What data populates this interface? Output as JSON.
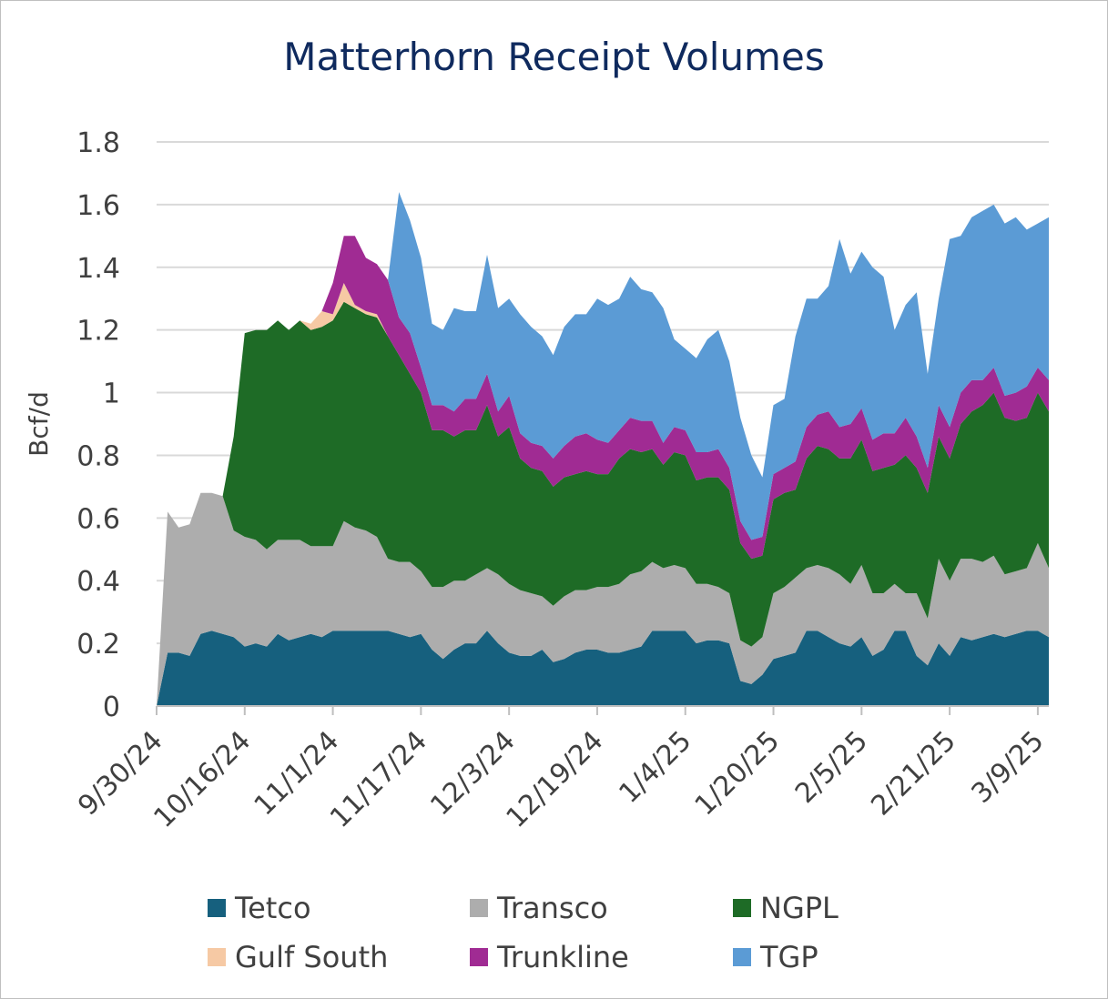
{
  "chart_data": {
    "type": "area",
    "stacked": true,
    "title": "Matterhorn Receipt Volumes",
    "ylabel": "Bcf/d",
    "xlabel": "",
    "ylim": [
      0,
      1.8
    ],
    "yticks": [
      0,
      0.2,
      0.4,
      0.6,
      0.8,
      1,
      1.2,
      1.4,
      1.6,
      1.8
    ],
    "ytick_labels": [
      "0",
      "0.2",
      "0.4",
      "0.6",
      "0.8",
      "1",
      "1.2",
      "1.4",
      "1.6",
      "1.8"
    ],
    "xtick_labels": [
      "9/30/24",
      "10/16/24",
      "11/1/24",
      "11/17/24",
      "12/3/24",
      "12/19/24",
      "1/4/25",
      "1/20/25",
      "2/5/25",
      "2/21/25",
      "3/9/25"
    ],
    "grid": true,
    "legend_position": "bottom",
    "x": [
      "9/30/24",
      "10/2/24",
      "10/4/24",
      "10/6/24",
      "10/8/24",
      "10/10/24",
      "10/12/24",
      "10/14/24",
      "10/16/24",
      "10/18/24",
      "10/20/24",
      "10/22/24",
      "10/24/24",
      "10/26/24",
      "10/28/24",
      "10/30/24",
      "11/1/24",
      "11/3/24",
      "11/5/24",
      "11/7/24",
      "11/9/24",
      "11/11/24",
      "11/13/24",
      "11/15/24",
      "11/17/24",
      "11/19/24",
      "11/21/24",
      "11/23/24",
      "11/25/24",
      "11/27/24",
      "11/29/24",
      "12/1/24",
      "12/3/24",
      "12/5/24",
      "12/7/24",
      "12/9/24",
      "12/11/24",
      "12/13/24",
      "12/15/24",
      "12/17/24",
      "12/19/24",
      "12/21/24",
      "12/23/24",
      "12/25/24",
      "12/27/24",
      "12/29/24",
      "12/31/24",
      "1/2/25",
      "1/4/25",
      "1/6/25",
      "1/8/25",
      "1/10/25",
      "1/12/25",
      "1/14/25",
      "1/16/25",
      "1/18/25",
      "1/20/25",
      "1/22/25",
      "1/24/25",
      "1/26/25",
      "1/28/25",
      "1/30/25",
      "2/1/25",
      "2/3/25",
      "2/5/25",
      "2/7/25",
      "2/9/25",
      "2/11/25",
      "2/13/25",
      "2/15/25",
      "2/17/25",
      "2/19/25",
      "2/21/25",
      "2/23/25",
      "2/25/25",
      "2/27/25",
      "3/1/25",
      "3/3/25",
      "3/5/25",
      "3/7/25",
      "3/9/25",
      "3/11/25"
    ],
    "series": [
      {
        "name": "Tetco",
        "color": "#16607e",
        "values": [
          0,
          0.17,
          0.17,
          0.16,
          0.23,
          0.24,
          0.23,
          0.22,
          0.19,
          0.2,
          0.19,
          0.23,
          0.21,
          0.22,
          0.23,
          0.22,
          0.24,
          0.24,
          0.24,
          0.24,
          0.24,
          0.24,
          0.23,
          0.22,
          0.23,
          0.18,
          0.15,
          0.18,
          0.2,
          0.2,
          0.24,
          0.2,
          0.17,
          0.16,
          0.16,
          0.18,
          0.14,
          0.15,
          0.17,
          0.18,
          0.18,
          0.17,
          0.17,
          0.18,
          0.19,
          0.24,
          0.24,
          0.24,
          0.24,
          0.2,
          0.21,
          0.21,
          0.2,
          0.08,
          0.07,
          0.1,
          0.15,
          0.16,
          0.17,
          0.24,
          0.24,
          0.22,
          0.2,
          0.19,
          0.22,
          0.16,
          0.18,
          0.24,
          0.24,
          0.16,
          0.13,
          0.2,
          0.16,
          0.22,
          0.21,
          0.22,
          0.23,
          0.22,
          0.23,
          0.24,
          0.24,
          0.22
        ]
      },
      {
        "name": "Transco",
        "color": "#adadad",
        "values": [
          0,
          0.45,
          0.4,
          0.42,
          0.45,
          0.44,
          0.44,
          0.34,
          0.35,
          0.33,
          0.31,
          0.3,
          0.32,
          0.31,
          0.28,
          0.29,
          0.27,
          0.35,
          0.33,
          0.32,
          0.3,
          0.23,
          0.23,
          0.24,
          0.2,
          0.2,
          0.23,
          0.22,
          0.2,
          0.22,
          0.2,
          0.22,
          0.22,
          0.21,
          0.2,
          0.17,
          0.18,
          0.2,
          0.2,
          0.19,
          0.2,
          0.21,
          0.22,
          0.24,
          0.24,
          0.22,
          0.2,
          0.21,
          0.2,
          0.19,
          0.18,
          0.17,
          0.16,
          0.13,
          0.12,
          0.12,
          0.21,
          0.22,
          0.24,
          0.2,
          0.21,
          0.22,
          0.22,
          0.2,
          0.23,
          0.2,
          0.18,
          0.15,
          0.12,
          0.2,
          0.15,
          0.27,
          0.24,
          0.25,
          0.26,
          0.24,
          0.25,
          0.2,
          0.2,
          0.2,
          0.28,
          0.22
        ]
      },
      {
        "name": "NGPL",
        "color": "#1e6b26",
        "values": [
          0,
          0,
          0,
          0,
          0,
          0,
          0,
          0.3,
          0.65,
          0.67,
          0.7,
          0.7,
          0.67,
          0.7,
          0.69,
          0.7,
          0.72,
          0.7,
          0.7,
          0.69,
          0.7,
          0.71,
          0.66,
          0.6,
          0.57,
          0.5,
          0.5,
          0.46,
          0.48,
          0.46,
          0.52,
          0.44,
          0.5,
          0.42,
          0.4,
          0.4,
          0.38,
          0.38,
          0.37,
          0.38,
          0.36,
          0.36,
          0.4,
          0.4,
          0.38,
          0.36,
          0.33,
          0.36,
          0.36,
          0.33,
          0.34,
          0.35,
          0.33,
          0.31,
          0.28,
          0.26,
          0.3,
          0.3,
          0.28,
          0.35,
          0.38,
          0.38,
          0.37,
          0.4,
          0.4,
          0.39,
          0.4,
          0.38,
          0.44,
          0.4,
          0.4,
          0.39,
          0.39,
          0.43,
          0.47,
          0.5,
          0.52,
          0.5,
          0.48,
          0.48,
          0.48,
          0.5
        ]
      },
      {
        "name": "Gulf South",
        "color": "#f6c9a4",
        "values": [
          0,
          0,
          0,
          0,
          0,
          0,
          0,
          0,
          0,
          0,
          0,
          0,
          0,
          0,
          0.02,
          0.05,
          0.02,
          0.06,
          0.01,
          0.01,
          0.01,
          0,
          0,
          0,
          0,
          0,
          0,
          0,
          0,
          0,
          0,
          0,
          0,
          0,
          0,
          0,
          0,
          0,
          0,
          0,
          0,
          0,
          0,
          0,
          0,
          0,
          0,
          0,
          0,
          0,
          0,
          0,
          0,
          0,
          0,
          0,
          0,
          0,
          0,
          0,
          0,
          0,
          0,
          0,
          0,
          0,
          0,
          0,
          0,
          0,
          0,
          0,
          0,
          0,
          0,
          0,
          0,
          0,
          0,
          0,
          0,
          0
        ]
      },
      {
        "name": "Trunkline",
        "color": "#a02b93",
        "values": [
          0,
          0,
          0,
          0,
          0,
          0,
          0,
          0,
          0,
          0,
          0,
          0,
          0,
          0,
          0,
          0,
          0.1,
          0.15,
          0.22,
          0.17,
          0.16,
          0.18,
          0.12,
          0.13,
          0.08,
          0.08,
          0.08,
          0.08,
          0.1,
          0.1,
          0.1,
          0.08,
          0.1,
          0.08,
          0.08,
          0.08,
          0.09,
          0.1,
          0.12,
          0.12,
          0.11,
          0.1,
          0.09,
          0.1,
          0.1,
          0.09,
          0.07,
          0.08,
          0.08,
          0.09,
          0.08,
          0.09,
          0.07,
          0.07,
          0.06,
          0.06,
          0.08,
          0.08,
          0.09,
          0.1,
          0.1,
          0.12,
          0.1,
          0.11,
          0.1,
          0.1,
          0.11,
          0.1,
          0.12,
          0.1,
          0.08,
          0.1,
          0.1,
          0.1,
          0.1,
          0.08,
          0.08,
          0.07,
          0.09,
          0.1,
          0.08,
          0.1
        ]
      },
      {
        "name": "TGP",
        "color": "#5b9bd5",
        "values": [
          0,
          0,
          0,
          0,
          0,
          0,
          0,
          0,
          0,
          0,
          0,
          0,
          0,
          0,
          0,
          0,
          0,
          0,
          0,
          0,
          0,
          0,
          0.4,
          0.36,
          0.35,
          0.26,
          0.24,
          0.33,
          0.28,
          0.28,
          0.38,
          0.33,
          0.31,
          0.38,
          0.37,
          0.35,
          0.33,
          0.38,
          0.39,
          0.38,
          0.45,
          0.44,
          0.42,
          0.45,
          0.42,
          0.41,
          0.43,
          0.28,
          0.26,
          0.3,
          0.36,
          0.38,
          0.34,
          0.33,
          0.27,
          0.19,
          0.22,
          0.22,
          0.4,
          0.41,
          0.37,
          0.4,
          0.6,
          0.48,
          0.5,
          0.55,
          0.5,
          0.33,
          0.36,
          0.46,
          0.3,
          0.34,
          0.6,
          0.5,
          0.52,
          0.54,
          0.52,
          0.55,
          0.56,
          0.5,
          0.46,
          0.52
        ]
      }
    ]
  }
}
